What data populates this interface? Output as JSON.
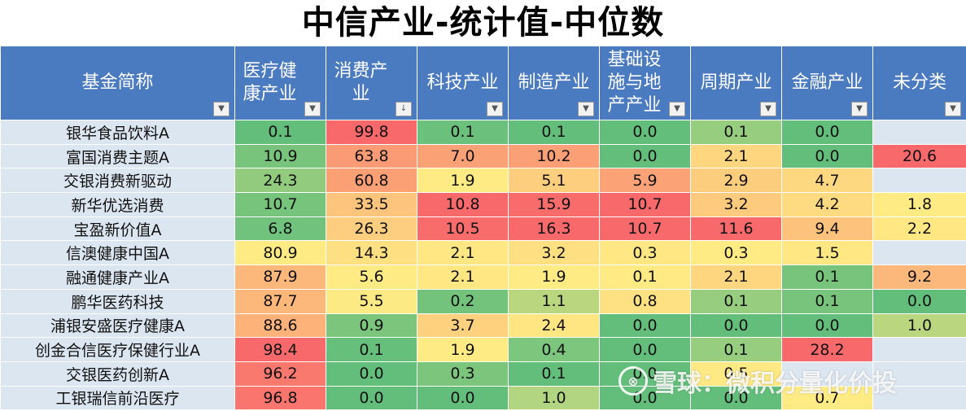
{
  "title": "中信产业-统计值-中位数",
  "columns": {
    "name": "基金简称",
    "c1": "医疗健康产业",
    "c2": "消费产业",
    "c3": "科技产业",
    "c4": "制造产业",
    "c5": "基础设施与地产产业",
    "c6": "周期产业",
    "c7": "金融产业",
    "c8": "未分类"
  },
  "filter_icons": {
    "default": "dropdown-arrow-icon",
    "sorted": "sort-desc-icon"
  },
  "watermark": {
    "logo": "xueqiu-logo",
    "text": "雪球：微积分量化价投"
  },
  "colors": {
    "header_bg": "#4a7ac0",
    "name_bg": "#dce6f1",
    "scale_low": "#63be7b",
    "scale_mid": "#ffeb84",
    "scale_high": "#f8696b"
  },
  "chart_data": {
    "type": "table",
    "title": "中信产业-统计值-中位数",
    "row_header": "基金简称",
    "columns": [
      "医疗健康产业",
      "消费产业",
      "科技产业",
      "制造产业",
      "基础设施与地产产业",
      "周期产业",
      "金融产业",
      "未分类"
    ],
    "rows": [
      {
        "name": "银华食品饮料A",
        "values": [
          "0.1",
          "99.8",
          "0.1",
          "0.1",
          "0.0",
          "0.1",
          "0.0",
          ""
        ]
      },
      {
        "name": "富国消费主题A",
        "values": [
          "10.9",
          "63.8",
          "7.0",
          "10.2",
          "0.0",
          "2.1",
          "0.0",
          "20.6"
        ]
      },
      {
        "name": "交银消费新驱动",
        "values": [
          "24.3",
          "60.8",
          "1.9",
          "5.1",
          "5.9",
          "2.9",
          "4.7",
          ""
        ]
      },
      {
        "name": "新华优选消费",
        "values": [
          "10.7",
          "33.5",
          "10.8",
          "15.9",
          "10.7",
          "3.2",
          "4.2",
          "1.8"
        ]
      },
      {
        "name": "宝盈新价值A",
        "values": [
          "6.8",
          "26.3",
          "10.5",
          "16.3",
          "10.7",
          "11.6",
          "9.4",
          "2.2"
        ]
      },
      {
        "name": "信澳健康中国A",
        "values": [
          "80.9",
          "14.3",
          "2.1",
          "3.2",
          "0.3",
          "0.3",
          "1.5",
          ""
        ]
      },
      {
        "name": "融通健康产业A",
        "values": [
          "87.9",
          "5.6",
          "2.1",
          "1.9",
          "0.1",
          "2.1",
          "0.1",
          "9.2"
        ]
      },
      {
        "name": "鹏华医药科技",
        "values": [
          "87.7",
          "5.5",
          "0.2",
          "1.1",
          "0.8",
          "0.1",
          "0.1",
          "0.0"
        ]
      },
      {
        "name": "浦银安盛医疗健康A",
        "values": [
          "88.6",
          "0.9",
          "3.7",
          "2.4",
          "0.0",
          "0.0",
          "0.0",
          "1.0"
        ]
      },
      {
        "name": "创金合信医疗保健行业A",
        "values": [
          "98.4",
          "0.1",
          "1.9",
          "0.4",
          "0.0",
          "0.1",
          "28.2",
          ""
        ]
      },
      {
        "name": "交银医药创新A",
        "values": [
          "96.2",
          "0.0",
          "0.3",
          "0.1",
          "0.0",
          "0.5",
          "",
          ""
        ]
      },
      {
        "name": "工银瑞信前沿医疗",
        "values": [
          "96.8",
          "0.0",
          "0.0",
          "1.0",
          "0.0",
          "0.0",
          "0.7",
          ""
        ]
      }
    ]
  }
}
